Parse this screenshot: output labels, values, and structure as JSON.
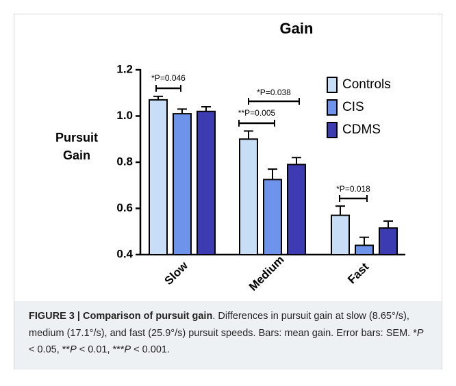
{
  "chart_data": {
    "type": "bar",
    "title": "Gain",
    "ylabel": [
      "Pursuit",
      "Gain"
    ],
    "categories": [
      "Slow",
      "Medium",
      "Fast"
    ],
    "series": [
      {
        "name": "Controls",
        "color": "#c8def6",
        "values": [
          1.07,
          0.9,
          0.57
        ],
        "errors": [
          0.015,
          0.035,
          0.04
        ]
      },
      {
        "name": "CIS",
        "color": "#6e93ea",
        "values": [
          1.01,
          0.725,
          0.44
        ],
        "errors": [
          0.02,
          0.045,
          0.035
        ]
      },
      {
        "name": "CDMS",
        "color": "#3d3bb2",
        "values": [
          1.02,
          0.79,
          0.515
        ],
        "errors": [
          0.02,
          0.03,
          0.03
        ]
      }
    ],
    "ylim": [
      0.4,
      1.2
    ],
    "yticks": [
      {
        "value": 0.4,
        "label": "0.4"
      },
      {
        "value": 0.6,
        "label": "0.6"
      },
      {
        "value": 0.8,
        "label": "0.8"
      },
      {
        "value": 1.0,
        "label": "1.0"
      },
      {
        "value": 1.2,
        "label": "1.2"
      }
    ],
    "annotations": [
      "*P=0.046",
      "**P=0.005",
      "*P=0.038",
      "*P=0.018"
    ]
  },
  "caption": {
    "label": "FIGURE 3 |",
    "title": "Comparison of pursuit gain",
    "segments": [
      ". Differences in pursuit gain at slow (8.65°/s), medium (17.1°/s), and fast (25.9°/s) pursuit speeds. Bars: mean gain. Error bars: SEM. *",
      "P",
      " < 0.05, **",
      "P",
      " < 0.01, ***",
      "P",
      " < 0.001."
    ]
  }
}
